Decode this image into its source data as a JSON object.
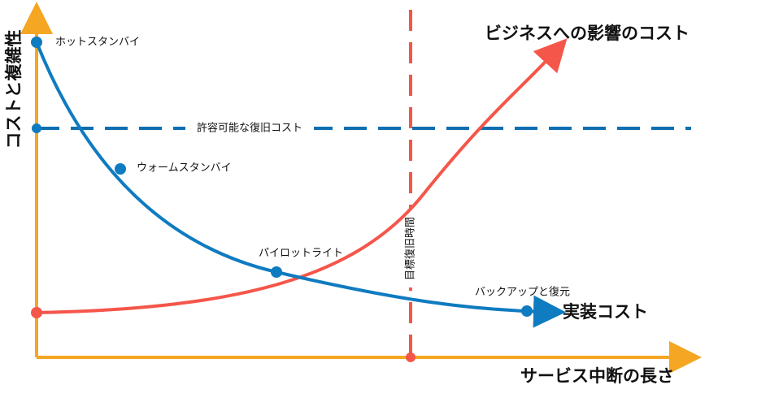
{
  "axes": {
    "y_label": "コストと複雑性",
    "x_label": "サービス中断の長さ"
  },
  "curves": {
    "business_impact": "ビジネスへの影響のコスト",
    "implementation": "実装コスト"
  },
  "acceptable_cost": "許容可能な復旧コスト",
  "rto": "目標復旧時間",
  "strategies": [
    "ホットスタンバイ",
    "ウォームスタンバイ",
    "パイロットライト",
    "バックアップと復元"
  ]
}
